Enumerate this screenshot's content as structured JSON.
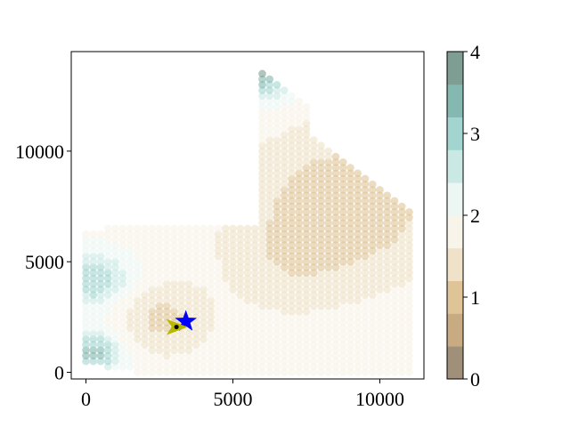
{
  "chart_data": {
    "type": "scatter",
    "title": "",
    "xlabel": "",
    "ylabel": "",
    "xlim": [
      -500,
      11500
    ],
    "ylim": [
      -300,
      14500
    ],
    "x_ticks": [
      {
        "value": 0,
        "label": "0"
      },
      {
        "value": 5000,
        "label": "5000"
      },
      {
        "value": 10000,
        "label": "10000"
      }
    ],
    "y_ticks": [
      {
        "value": 0,
        "label": "0"
      },
      {
        "value": 5000,
        "label": "5000"
      },
      {
        "value": 10000,
        "label": "10000"
      }
    ],
    "grid": false,
    "point_spacing": 250,
    "point_alpha": 0.6,
    "colorbar": {
      "range": [
        0,
        4
      ],
      "ticks": [
        {
          "value": 0,
          "label": "0"
        },
        {
          "value": 1,
          "label": "1"
        },
        {
          "value": 2,
          "label": "2"
        },
        {
          "value": 3,
          "label": "3"
        },
        {
          "value": 4,
          "label": "4"
        }
      ],
      "colors": [
        "#a0907a",
        "#c8ab82",
        "#dfc498",
        "#efe2c8",
        "#f8f4ea",
        "#ecf6f3",
        "#cbe9e4",
        "#a3d5d0",
        "#84b8b0",
        "#7e9d93"
      ]
    },
    "markers": [
      {
        "name": "",
        "shape": "star",
        "color": "#0000ff",
        "x": 3400,
        "y": 2300
      },
      {
        "name": "",
        "shape": "tri_right",
        "color": "#b8b800",
        "x": 3100,
        "y": 2050
      },
      {
        "name": "",
        "shape": "dot",
        "color": "#000000",
        "x": 3080,
        "y": 2050
      }
    ]
  }
}
